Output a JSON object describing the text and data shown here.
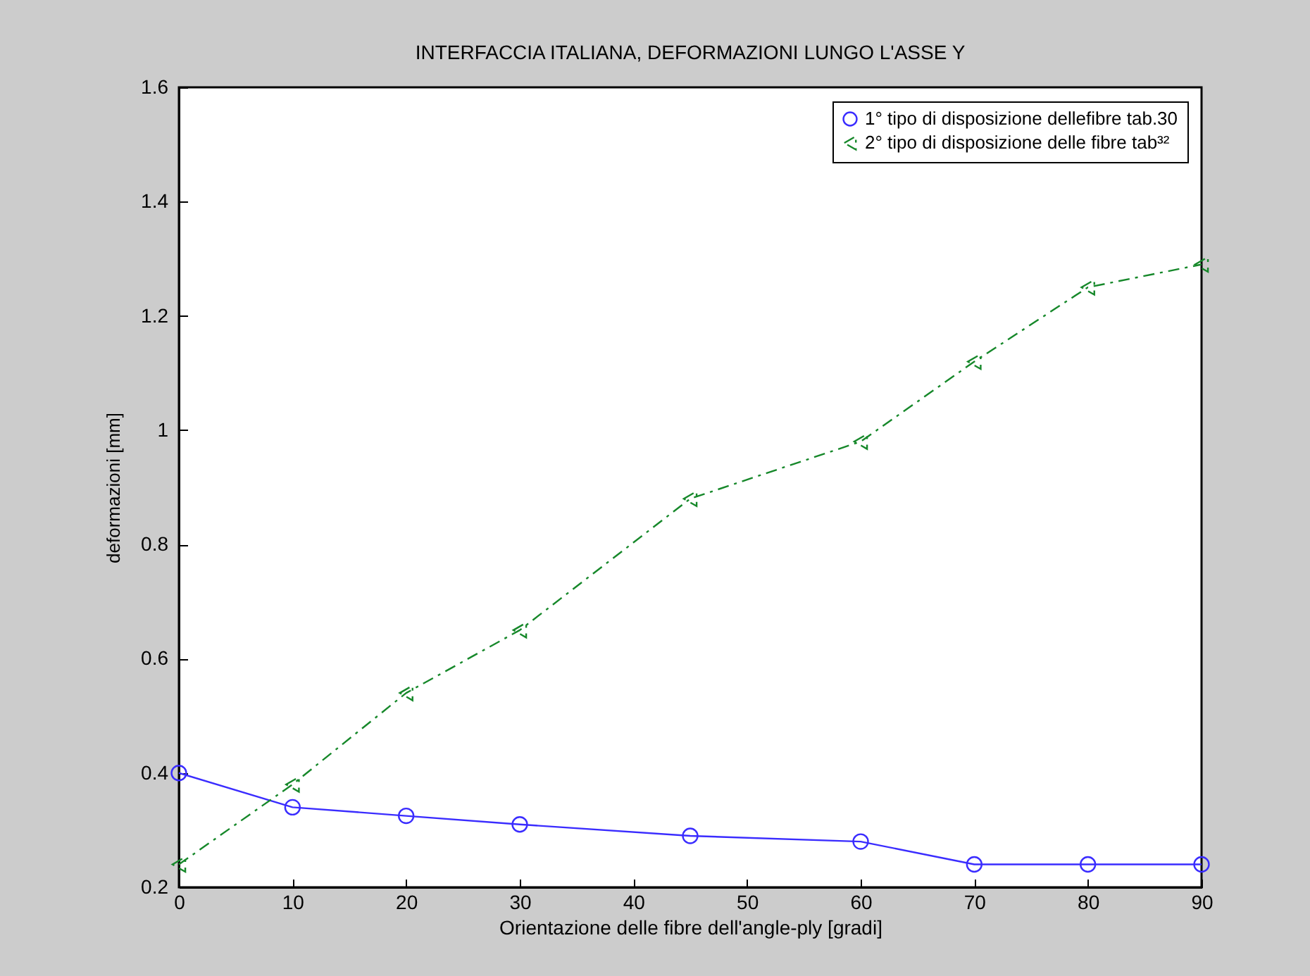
{
  "chart_data": {
    "type": "line",
    "title": "INTERFACCIA ITALIANA, DEFORMAZIONI LUNGO L'ASSE Y",
    "xlabel": "Orientazione delle fibre dell'angle-ply [gradi]",
    "ylabel": "deformazioni [mm]",
    "x": [
      0,
      10,
      20,
      30,
      45,
      60,
      70,
      80,
      90
    ],
    "series": [
      {
        "name": "1° tipo di disposizione dellefibre tab.30",
        "color": "#3a2cff",
        "marker": "circle",
        "line_style": "solid",
        "values": [
          0.4,
          0.34,
          0.325,
          0.31,
          0.29,
          0.28,
          0.24,
          0.24,
          0.24
        ]
      },
      {
        "name": "2° tipo di disposizione delle fibre tab³²",
        "color": "#16882a",
        "marker": "triangle",
        "line_style": "dashed",
        "values": [
          0.24,
          0.38,
          0.54,
          0.65,
          0.88,
          0.98,
          1.12,
          1.25,
          1.29
        ]
      }
    ],
    "xlim": [
      0,
      90
    ],
    "xticks": [
      0,
      10,
      20,
      30,
      40,
      50,
      60,
      70,
      80,
      90
    ],
    "ylim": [
      0.2,
      1.6
    ],
    "yticks": [
      0.2,
      0.4,
      0.6,
      0.8,
      1,
      1.2,
      1.4,
      1.6
    ],
    "legend": "top right"
  }
}
